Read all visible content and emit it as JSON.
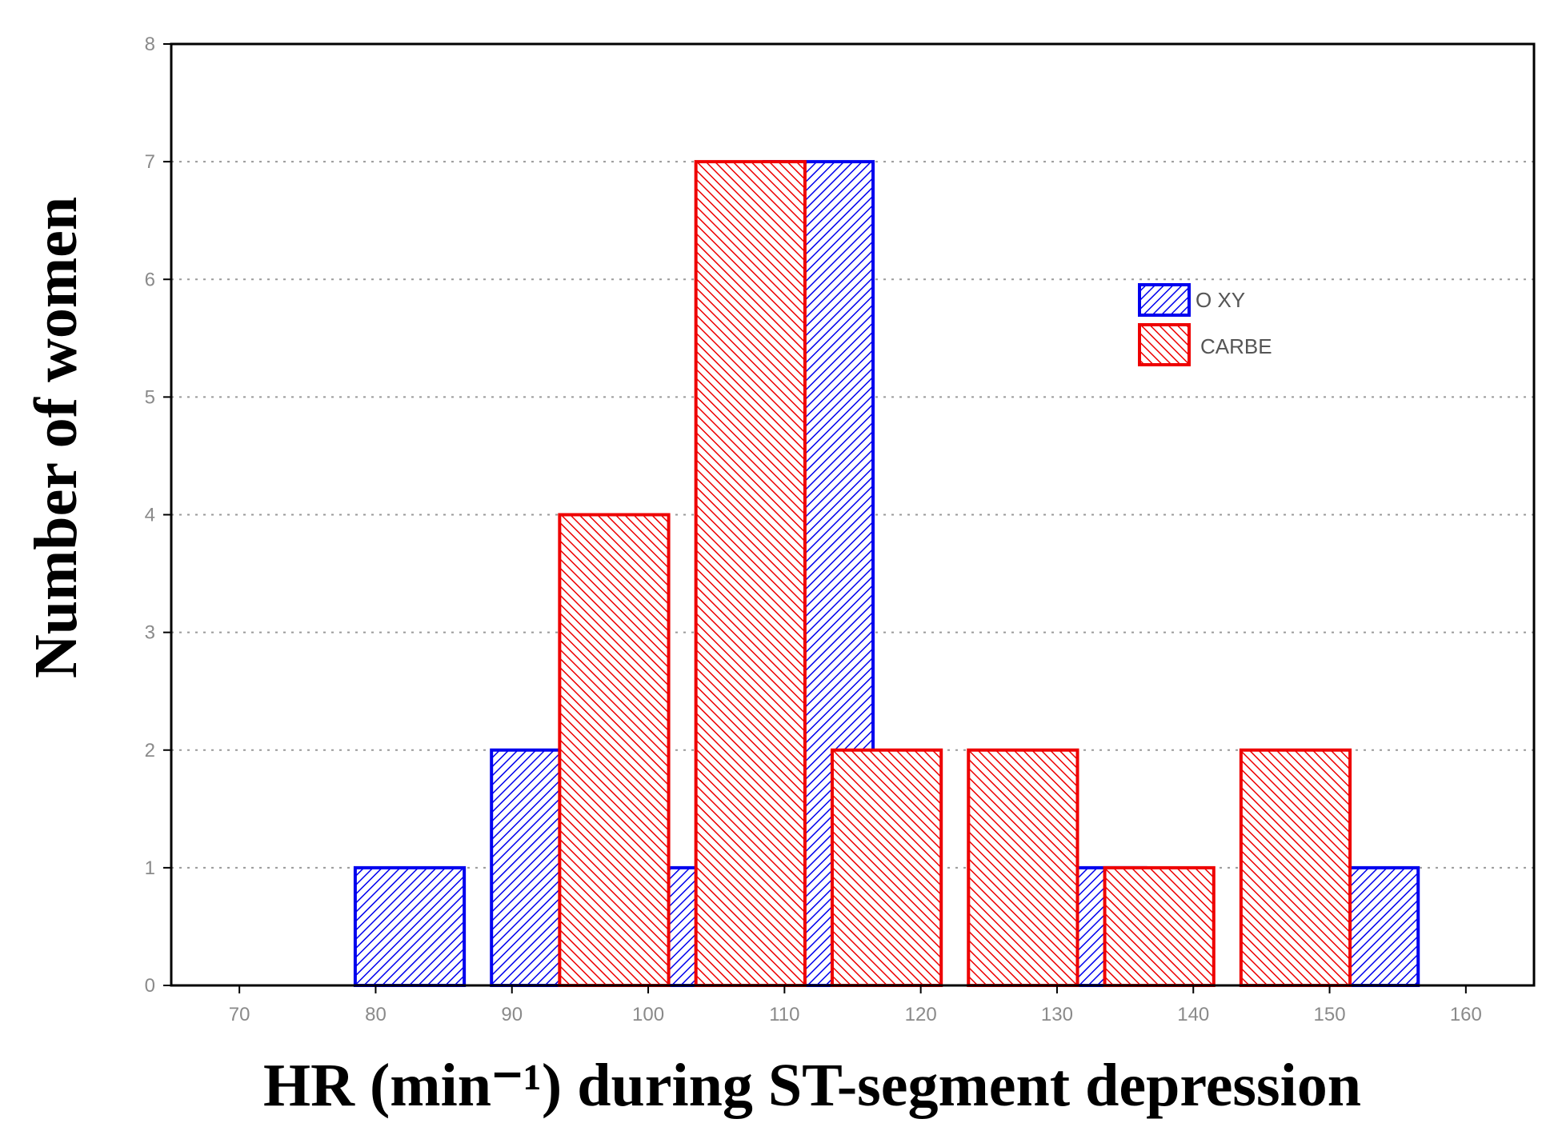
{
  "chart_data": {
    "type": "bar",
    "title": "",
    "xlabel": "HR (min⁻¹) during ST-segment depression",
    "ylabel": "Number of women",
    "xlim": [
      65,
      165
    ],
    "ylim": [
      0,
      8
    ],
    "x_ticks": [
      70,
      80,
      90,
      100,
      110,
      120,
      130,
      140,
      150,
      160
    ],
    "y_ticks": [
      0,
      1,
      2,
      3,
      4,
      5,
      6,
      7,
      8
    ],
    "grid": "horizontal dotted",
    "legend_position": "upper-right",
    "series": [
      {
        "name": "OXY",
        "legend_label": "O XY",
        "color": "#0000ee",
        "bars": [
          {
            "x_center": 82.5,
            "value": 1
          },
          {
            "x_center": 92.5,
            "value": 2
          },
          {
            "x_center": 102.5,
            "value": 1
          },
          {
            "x_center": 112.5,
            "value": 7
          },
          {
            "x_center": 132.5,
            "value": 1
          },
          {
            "x_center": 152.5,
            "value": 1
          }
        ]
      },
      {
        "name": "CARBE",
        "legend_label": "CARBE",
        "color": "#ee0000",
        "bars": [
          {
            "x_center": 97.5,
            "value": 4
          },
          {
            "x_center": 107.5,
            "value": 7
          },
          {
            "x_center": 117.5,
            "value": 2
          },
          {
            "x_center": 127.5,
            "value": 2
          },
          {
            "x_center": 137.5,
            "value": 1
          },
          {
            "x_center": 147.5,
            "value": 2
          }
        ]
      }
    ]
  }
}
